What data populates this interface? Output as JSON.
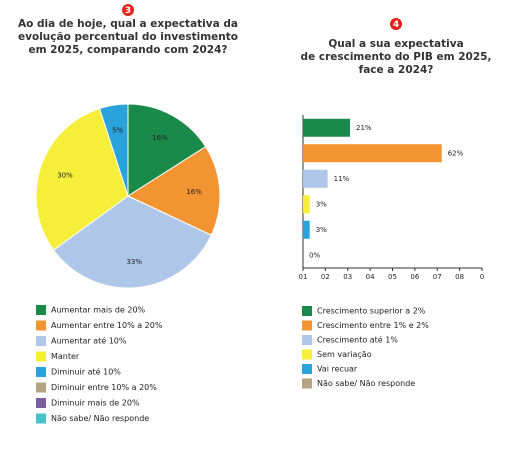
{
  "chart_data": [
    {
      "type": "pie",
      "badge": "3",
      "title": [
        "Ao dia de hoje, qual a expectativa da",
        "evolução percentual do investimento",
        "em 2025, comparando com 2024?"
      ],
      "categories": [
        "Aumentar mais de 20%",
        "Aumentar entre 10% a 20%",
        "Aumentar até 10%",
        "Manter",
        "Diminuir até 10%",
        "Diminuir entre 10% a 20%",
        "Diminuir mais de 20%",
        "Não sabe/ Não responde"
      ],
      "colors": [
        "#1a8a4a",
        "#f39433",
        "#aec6e8",
        "#f5ee3a",
        "#2aa3dc",
        "#b5a482",
        "#7b5e9e",
        "#45c1c9"
      ],
      "values": [
        16,
        16,
        33,
        30,
        5,
        0,
        0,
        0
      ],
      "value_labels": [
        "16%",
        "16%",
        "33%",
        "30%",
        "5%",
        null,
        null,
        null
      ]
    },
    {
      "type": "bar",
      "orientation": "horizontal",
      "badge": "4",
      "title": [
        "Qual a sua expectativa",
        "de crescimento do PIB em 2025,",
        "face a 2024?"
      ],
      "categories": [
        "Crescimento superior a 2%",
        "Crescimento entre 1% e 2%",
        "Crescimento até 1%",
        "Sem variação",
        "Vai recuar",
        "Não sabe/ Não responde"
      ],
      "colors": [
        "#1a8a4a",
        "#f39433",
        "#aec6e8",
        "#f5ee3a",
        "#2aa3dc",
        "#b5a482"
      ],
      "values": [
        21,
        62,
        11,
        3,
        3,
        0
      ],
      "value_labels": [
        "21%",
        "62%",
        "11%",
        "3%",
        "3%",
        "0%"
      ],
      "xlim": [
        0,
        80
      ],
      "xticks": [
        {
          "value": 0,
          "label": "01"
        },
        {
          "value": 10,
          "label": "02"
        },
        {
          "value": 20,
          "label": "03"
        },
        {
          "value": 30,
          "label": "04"
        },
        {
          "value": 40,
          "label": "05"
        },
        {
          "value": 50,
          "label": "06"
        },
        {
          "value": 60,
          "label": "07"
        },
        {
          "value": 70,
          "label": "08"
        },
        {
          "value": 80,
          "label": "0"
        }
      ]
    }
  ]
}
